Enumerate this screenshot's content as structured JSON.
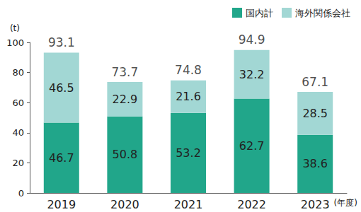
{
  "chart_data": {
    "type": "bar",
    "stacked": true,
    "data_labels": true,
    "grid": false,
    "legend": "top-right",
    "y_label": "(t)",
    "x_label": "(年度)",
    "categories": [
      "2019",
      "2020",
      "2021",
      "2022",
      "2023"
    ],
    "series": [
      {
        "name": "国内計",
        "color": "#21a68a",
        "values": [
          46.7,
          50.8,
          53.2,
          62.7,
          38.6
        ]
      },
      {
        "name": "海外関係会社",
        "color": "#a2d7d4",
        "values": [
          46.5,
          22.9,
          21.6,
          32.2,
          28.5
        ]
      }
    ],
    "totals": [
      93.1,
      73.7,
      74.8,
      94.9,
      67.1
    ],
    "ylim": [
      0,
      100
    ],
    "yticks": [
      0,
      20,
      40,
      60,
      80,
      100
    ]
  }
}
